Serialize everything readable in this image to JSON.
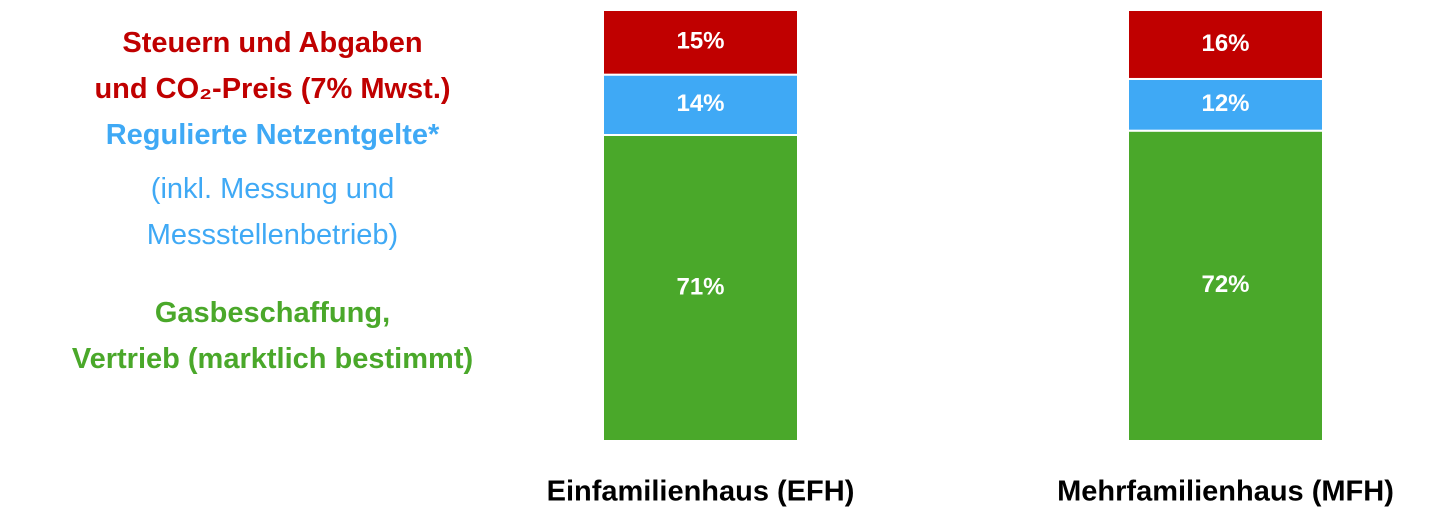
{
  "chart_data": {
    "type": "stacked_bar",
    "categories": [
      "Einfamilienhaus (EFH)",
      "Mehrfamilienhaus (MFH)"
    ],
    "series": [
      {
        "name": "Gasbeschaffung,\nVertrieb (marktlich bestimmt)",
        "color": "#4aa82a",
        "values": [
          71,
          72
        ],
        "value_labels": [
          "71%",
          "72%"
        ]
      },
      {
        "name": "Regulierte Netzentgelte*",
        "legend_note": "(inkl. Messung und\nMessstellenbetrieb)",
        "color": "#3fa9f5",
        "values": [
          14,
          12
        ],
        "value_labels": [
          "14%",
          "12%"
        ]
      },
      {
        "name": "Steuern und Abgaben\nund CO₂-Preis (7% Mwst.)",
        "color": "#c00000",
        "values": [
          15,
          16
        ],
        "value_labels": [
          "15%",
          "16%"
        ]
      }
    ]
  }
}
